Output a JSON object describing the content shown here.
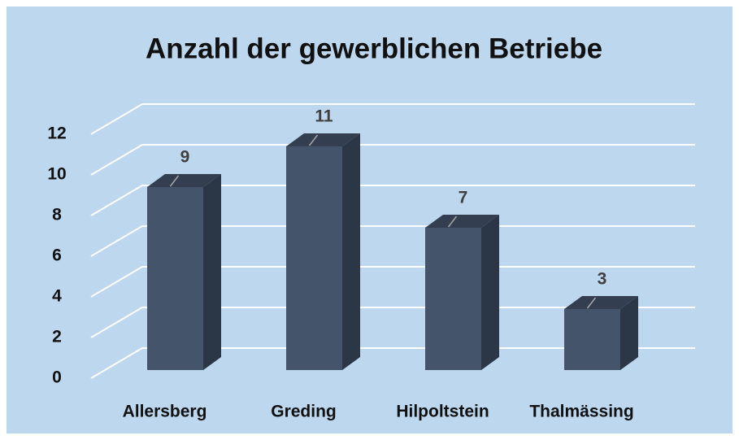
{
  "chart_data": {
    "type": "bar",
    "title": "Anzahl der gewerblichen Betriebe",
    "categories": [
      "Allersberg",
      "Greding",
      "Hilpoltstein",
      "Thalmässing"
    ],
    "values": [
      9,
      11,
      7,
      3
    ],
    "color": "#44546a",
    "ylim": [
      0,
      12
    ],
    "yticks": [
      0,
      2,
      4,
      6,
      8,
      10,
      12
    ],
    "grid": true
  }
}
